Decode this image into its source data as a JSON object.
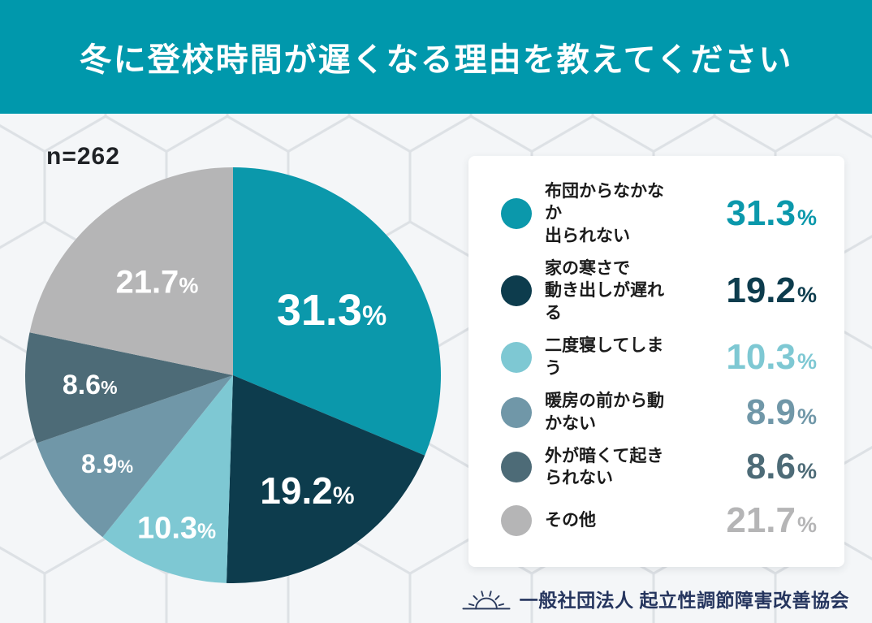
{
  "header": {
    "title": "冬に登校時間が遅くなる理由を教えてください",
    "bg_color": "#0098ac"
  },
  "sample_label": "n=262",
  "percent_sign": "%",
  "chart_data": {
    "type": "pie",
    "title": "冬に登校時間が遅くなる理由を教えてください",
    "sample_size_label": "n=262",
    "start_angle_deg": 0,
    "direction": "clockwise",
    "legend_position": "right",
    "categories": [
      "布団からなかなか出られない",
      "家の寒さで動き出しが遅れる",
      "二度寝してしまう",
      "暖房の前から動かない",
      "外が暗くて起きられない",
      "その他"
    ],
    "values": [
      31.3,
      19.2,
      10.3,
      8.9,
      8.6,
      21.7
    ],
    "slices": [
      {
        "label": "布団からなかなか出られない",
        "label_lines": [
          "布団からなかなか",
          "出られない"
        ],
        "value": 31.3,
        "display": "31.3",
        "color": "#0b98ab"
      },
      {
        "label": "家の寒さで動き出しが遅れる",
        "label_lines": [
          "家の寒さで",
          "動き出しが遅れる"
        ],
        "value": 19.2,
        "display": "19.2",
        "color": "#0d3c4d"
      },
      {
        "label": "二度寝してしまう",
        "label_lines": [
          "二度寝してしまう"
        ],
        "value": 10.3,
        "display": "10.3",
        "color": "#7ec8d3"
      },
      {
        "label": "暖房の前から動かない",
        "label_lines": [
          "暖房の前から動かない"
        ],
        "value": 8.9,
        "display": "8.9",
        "color": "#7097a8"
      },
      {
        "label": "外が暗くて起きられない",
        "label_lines": [
          "外が暗くて起きられない"
        ],
        "value": 8.6,
        "display": "8.6",
        "color": "#4d6b77"
      },
      {
        "label": "その他",
        "label_lines": [
          "その他"
        ],
        "value": 21.7,
        "display": "21.7",
        "color": "#b5b5b6"
      }
    ]
  },
  "footer": {
    "icon": "rising-sun-icon",
    "org": "一般社団法人 起立性調節障害改善協会"
  }
}
